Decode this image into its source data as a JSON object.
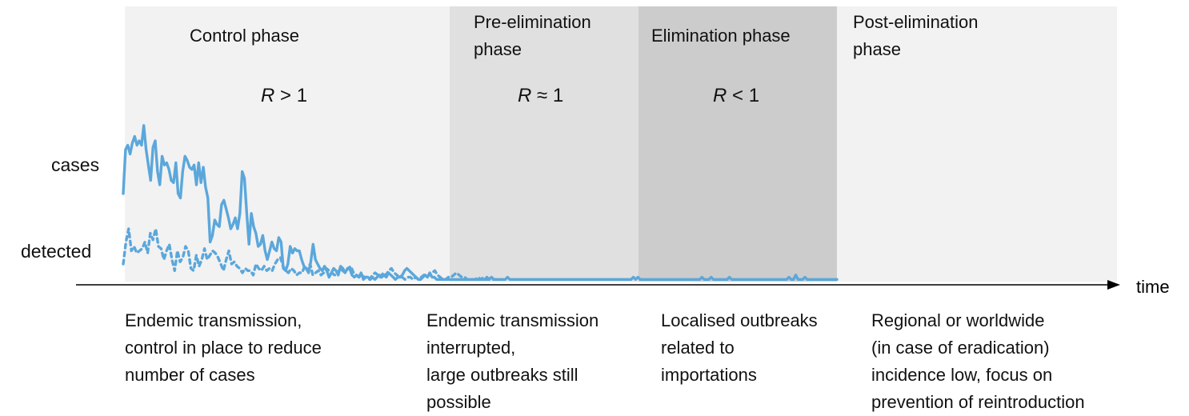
{
  "phases": [
    {
      "title": "Control phase",
      "r_symbol": "R",
      "r_relation": "> 1",
      "description": "Endemic transmission,\ncontrol in place to reduce\nnumber of cases",
      "color": "#f2f2f2"
    },
    {
      "title": "Pre-elimination\nphase",
      "r_symbol": "R",
      "r_relation": "≈ 1",
      "description": "Endemic transmission\ninterrupted,\nlarge outbreaks still\npossible",
      "color": "#e0e0e0"
    },
    {
      "title": "Elimination phase",
      "r_symbol": "R",
      "r_relation": "< 1",
      "description": "Localised outbreaks\nrelated to\nimportations",
      "color": "#cccccc"
    },
    {
      "title": "Post-elimination\nphase",
      "description": "Regional or worldwide\n(in case of eradication)\nincidence low, focus on\nprevention of reintroduction",
      "color": "#f2f2f2"
    }
  ],
  "axis": {
    "x_label": "time",
    "color": "#000000"
  },
  "labels": {
    "cases": "cases",
    "detected": "detected"
  },
  "series": {
    "cases_color": "#5ba7db",
    "detected_color": "#5ba7db"
  },
  "chart_data": {
    "type": "line",
    "xlabel": "time",
    "ylabel": "",
    "series": [
      {
        "name": "cases",
        "style": "solid",
        "values": [
          40,
          60,
          62,
          58,
          63,
          66,
          62,
          64,
          62,
          71,
          60,
          53,
          46,
          61,
          64,
          50,
          44,
          57,
          53,
          54,
          51,
          46,
          45,
          54,
          40,
          38,
          50,
          57,
          55,
          52,
          51,
          53,
          44,
          54,
          45,
          52,
          43,
          38,
          18,
          21,
          28,
          26,
          25,
          35,
          37,
          33,
          29,
          24,
          26,
          29,
          24,
          31,
          50,
          47,
          31,
          17,
          31,
          25,
          22,
          16,
          17,
          21,
          14,
          10,
          14,
          18,
          15,
          14,
          20,
          18,
          6,
          5,
          8,
          16,
          13,
          15,
          14,
          14,
          10,
          7,
          6,
          4,
          9,
          17,
          10,
          8,
          6,
          5,
          7,
          5,
          2,
          4,
          6,
          5,
          3,
          7,
          6,
          4,
          6,
          6,
          3,
          2,
          3,
          2,
          4,
          1,
          2,
          2,
          1,
          2,
          1,
          2,
          3,
          2,
          3,
          2,
          4,
          3,
          2,
          1,
          2,
          2,
          3,
          5,
          6,
          5,
          4,
          3,
          2,
          1,
          1,
          2,
          3,
          2,
          4,
          2,
          2,
          1,
          1,
          1,
          1,
          1,
          1,
          1,
          1,
          1,
          1,
          1,
          1,
          1,
          1,
          1,
          1,
          1,
          1,
          1,
          1,
          1,
          1,
          2,
          1,
          2,
          1,
          1,
          1,
          1,
          1,
          1,
          2,
          1,
          1,
          1,
          1,
          1,
          1,
          1,
          1,
          1,
          1,
          1,
          1,
          1,
          1,
          1,
          1,
          1,
          1,
          1,
          1,
          1,
          1,
          1,
          1,
          1,
          1,
          1,
          1,
          1,
          1,
          1,
          1,
          1,
          1,
          1,
          1,
          1,
          1,
          1,
          1,
          1,
          1,
          1,
          1,
          1,
          1,
          1,
          1,
          1,
          1,
          1,
          1,
          1,
          1,
          2,
          1,
          2,
          1,
          1,
          1,
          1,
          1,
          1,
          1,
          1,
          1,
          1,
          1,
          1,
          1,
          1,
          1,
          1,
          1,
          1,
          1,
          1,
          1,
          1,
          1,
          1,
          1,
          1,
          1,
          2,
          1,
          1,
          1,
          2,
          1,
          1,
          1,
          1,
          1,
          1,
          1,
          2,
          1,
          1,
          1,
          1,
          1,
          1,
          1,
          1,
          1,
          1,
          1,
          1,
          1,
          1,
          1,
          1,
          1,
          1,
          1,
          1,
          1,
          1,
          1,
          1,
          1,
          2,
          1,
          1,
          3,
          1,
          1,
          1,
          2,
          1,
          1,
          1,
          1,
          1,
          1,
          1,
          1,
          1,
          1,
          1,
          1,
          1,
          1
        ]
      },
      {
        "name": "detected",
        "style": "dashed",
        "values": [
          8,
          18,
          24,
          14,
          16,
          13,
          14,
          15,
          18,
          13,
          22,
          19,
          24,
          16,
          15,
          10,
          14,
          17,
          10,
          5,
          14,
          9,
          11,
          16,
          14,
          6,
          5,
          12,
          7,
          10,
          15,
          10,
          12,
          14,
          13,
          11,
          8,
          5,
          10,
          14,
          8,
          9,
          7,
          6,
          4,
          6,
          5,
          5,
          3,
          8,
          6,
          5,
          7,
          5,
          6,
          5,
          8,
          10,
          11,
          7,
          5,
          4,
          6,
          5,
          3,
          4,
          4,
          7,
          5,
          8,
          3,
          4,
          5,
          3,
          4,
          6,
          5,
          4,
          3,
          3,
          6,
          5,
          4,
          6,
          7,
          4,
          3,
          2,
          3,
          2,
          2,
          1,
          3,
          4,
          3,
          2,
          4,
          3,
          5,
          6,
          4,
          3,
          2,
          2,
          1,
          2,
          2,
          1,
          2,
          1,
          2,
          3,
          2,
          3,
          4,
          5,
          3,
          2,
          1,
          1,
          2,
          2,
          3,
          4,
          3,
          2,
          2,
          1,
          1,
          1,
          1,
          2,
          1,
          2,
          1,
          1,
          1,
          1,
          1,
          1,
          1
        ]
      }
    ]
  }
}
